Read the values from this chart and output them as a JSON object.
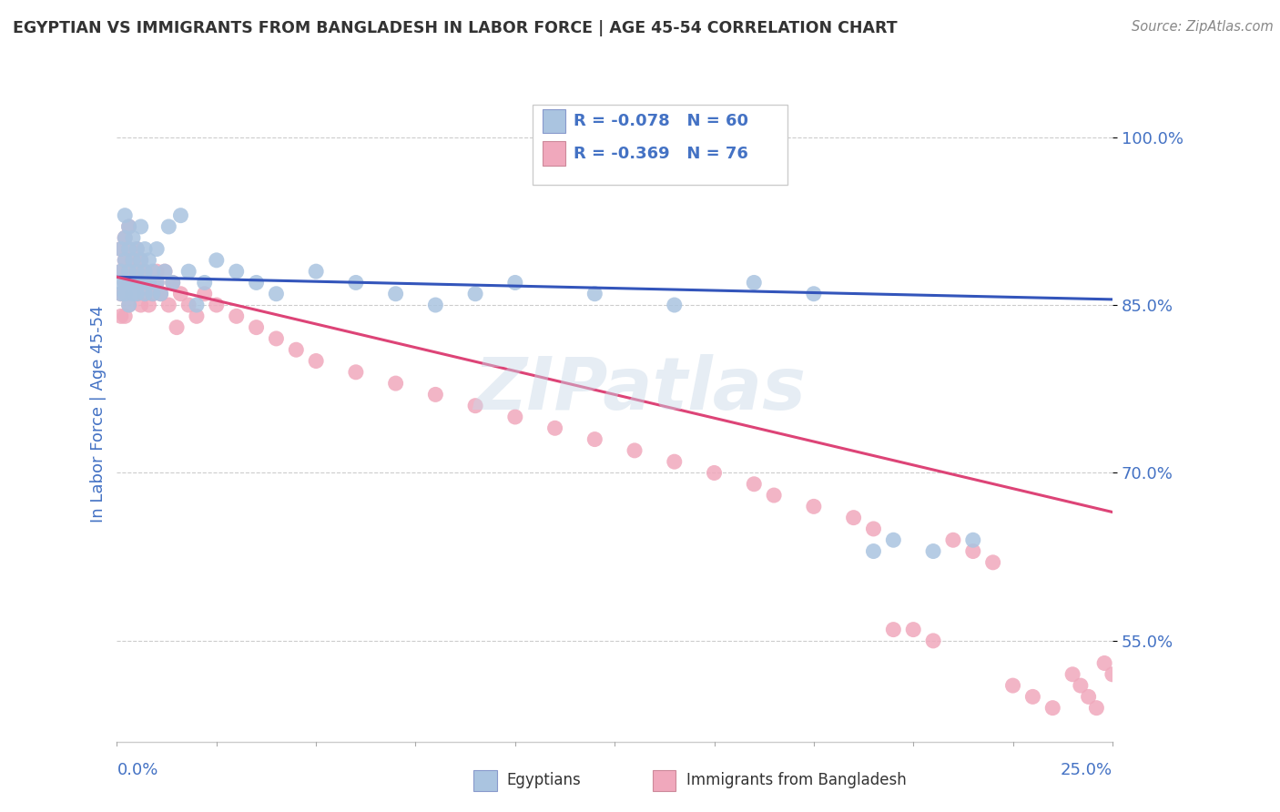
{
  "title": "EGYPTIAN VS IMMIGRANTS FROM BANGLADESH IN LABOR FORCE | AGE 45-54 CORRELATION CHART",
  "source": "Source: ZipAtlas.com",
  "ylabel": "In Labor Force | Age 45-54",
  "ytick_labels": [
    "55.0%",
    "70.0%",
    "85.0%",
    "100.0%"
  ],
  "ytick_values": [
    0.55,
    0.7,
    0.85,
    1.0
  ],
  "xlim": [
    0.0,
    0.25
  ],
  "ylim": [
    0.46,
    1.045
  ],
  "legend_r1": "R = -0.078",
  "legend_n1": "N = 60",
  "legend_r2": "R = -0.369",
  "legend_n2": "N = 76",
  "blue_color": "#aac4e0",
  "pink_color": "#f0a8bc",
  "blue_line_color": "#3355bb",
  "pink_line_color": "#dd4477",
  "title_color": "#333333",
  "source_color": "#888888",
  "axis_label_color": "#4472c4",
  "egypt_x": [
    0.001,
    0.001,
    0.001,
    0.001,
    0.002,
    0.002,
    0.002,
    0.002,
    0.002,
    0.003,
    0.003,
    0.003,
    0.003,
    0.003,
    0.004,
    0.004,
    0.004,
    0.004,
    0.005,
    0.005,
    0.005,
    0.005,
    0.006,
    0.006,
    0.006,
    0.007,
    0.007,
    0.007,
    0.008,
    0.008,
    0.009,
    0.009,
    0.01,
    0.01,
    0.011,
    0.012,
    0.013,
    0.014,
    0.016,
    0.018,
    0.02,
    0.022,
    0.025,
    0.03,
    0.035,
    0.04,
    0.05,
    0.06,
    0.07,
    0.08,
    0.09,
    0.1,
    0.12,
    0.14,
    0.16,
    0.175,
    0.19,
    0.195,
    0.205,
    0.215
  ],
  "egypt_y": [
    0.88,
    0.9,
    0.87,
    0.86,
    0.91,
    0.89,
    0.87,
    0.93,
    0.86,
    0.92,
    0.88,
    0.9,
    0.87,
    0.85,
    0.89,
    0.87,
    0.91,
    0.86,
    0.88,
    0.9,
    0.87,
    0.86,
    0.89,
    0.87,
    0.92,
    0.88,
    0.86,
    0.9,
    0.87,
    0.89,
    0.86,
    0.88,
    0.87,
    0.9,
    0.86,
    0.88,
    0.92,
    0.87,
    0.93,
    0.88,
    0.85,
    0.87,
    0.89,
    0.88,
    0.87,
    0.86,
    0.88,
    0.87,
    0.86,
    0.85,
    0.86,
    0.87,
    0.86,
    0.85,
    0.87,
    0.86,
    0.63,
    0.64,
    0.63,
    0.64
  ],
  "bang_x": [
    0.001,
    0.001,
    0.001,
    0.001,
    0.002,
    0.002,
    0.002,
    0.002,
    0.002,
    0.003,
    0.003,
    0.003,
    0.003,
    0.003,
    0.004,
    0.004,
    0.004,
    0.005,
    0.005,
    0.005,
    0.005,
    0.006,
    0.006,
    0.006,
    0.007,
    0.007,
    0.008,
    0.008,
    0.009,
    0.01,
    0.01,
    0.011,
    0.012,
    0.013,
    0.014,
    0.015,
    0.016,
    0.018,
    0.02,
    0.022,
    0.025,
    0.03,
    0.035,
    0.04,
    0.045,
    0.05,
    0.06,
    0.07,
    0.08,
    0.09,
    0.1,
    0.11,
    0.12,
    0.13,
    0.14,
    0.15,
    0.16,
    0.165,
    0.175,
    0.185,
    0.19,
    0.195,
    0.2,
    0.205,
    0.21,
    0.215,
    0.22,
    0.225,
    0.23,
    0.235,
    0.24,
    0.242,
    0.244,
    0.246,
    0.248,
    0.25
  ],
  "bang_y": [
    0.88,
    0.9,
    0.86,
    0.84,
    0.91,
    0.89,
    0.87,
    0.86,
    0.84,
    0.92,
    0.88,
    0.9,
    0.87,
    0.85,
    0.89,
    0.87,
    0.86,
    0.88,
    0.9,
    0.87,
    0.86,
    0.89,
    0.87,
    0.85,
    0.88,
    0.86,
    0.87,
    0.85,
    0.86,
    0.88,
    0.87,
    0.86,
    0.88,
    0.85,
    0.87,
    0.83,
    0.86,
    0.85,
    0.84,
    0.86,
    0.85,
    0.84,
    0.83,
    0.82,
    0.81,
    0.8,
    0.79,
    0.78,
    0.77,
    0.76,
    0.75,
    0.74,
    0.73,
    0.72,
    0.71,
    0.7,
    0.69,
    0.68,
    0.67,
    0.66,
    0.65,
    0.56,
    0.56,
    0.55,
    0.64,
    0.63,
    0.62,
    0.51,
    0.5,
    0.49,
    0.52,
    0.51,
    0.5,
    0.49,
    0.53,
    0.52
  ]
}
